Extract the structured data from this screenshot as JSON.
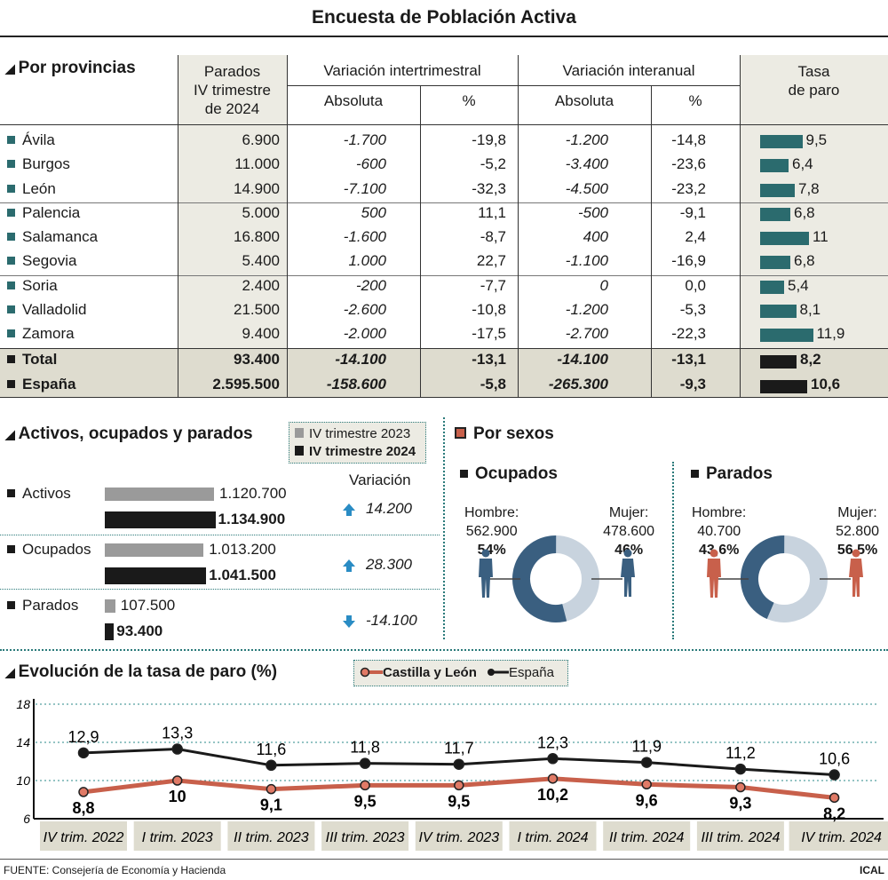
{
  "title": "Encuesta de Población Activa",
  "provinces": {
    "title": "Por provincias",
    "headers": {
      "parados": [
        "Parados",
        "IV trimestre",
        "de 2024"
      ],
      "intertrim": "Variación intertrimestral",
      "interanual": "Variación interanual",
      "absoluta": "Absoluta",
      "pct": "%",
      "tasa": [
        "Tasa",
        "de paro"
      ]
    },
    "rows": [
      {
        "name": "Ávila",
        "parados": "6.900",
        "it_abs": "-1.700",
        "it_pct": "-19,8",
        "ia_abs": "-1.200",
        "ia_pct": "-14,8",
        "tasa": "9,5",
        "tasa_value": 9.5
      },
      {
        "name": "Burgos",
        "parados": "11.000",
        "it_abs": "-600",
        "it_pct": "-5,2",
        "ia_abs": "-3.400",
        "ia_pct": "-23,6",
        "tasa": "6,4",
        "tasa_value": 6.4
      },
      {
        "name": "León",
        "parados": "14.900",
        "it_abs": "-7.100",
        "it_pct": "-32,3",
        "ia_abs": "-4.500",
        "ia_pct": "-23,2",
        "tasa": "7,8",
        "tasa_value": 7.8
      },
      {
        "name": "Palencia",
        "parados": "5.000",
        "it_abs": "500",
        "it_pct": "11,1",
        "ia_abs": "-500",
        "ia_pct": "-9,1",
        "tasa": "6,8",
        "tasa_value": 6.8
      },
      {
        "name": "Salamanca",
        "parados": "16.800",
        "it_abs": "-1.600",
        "it_pct": "-8,7",
        "ia_abs": "400",
        "ia_pct": "2,4",
        "tasa": "11",
        "tasa_value": 11
      },
      {
        "name": "Segovia",
        "parados": "5.400",
        "it_abs": "1.000",
        "it_pct": "22,7",
        "ia_abs": "-1.100",
        "ia_pct": "-16,9",
        "tasa": "6,8",
        "tasa_value": 6.8
      },
      {
        "name": "Soria",
        "parados": "2.400",
        "it_abs": "-200",
        "it_pct": "-7,7",
        "ia_abs": "0",
        "ia_pct": "0,0",
        "tasa": "5,4",
        "tasa_value": 5.4
      },
      {
        "name": "Valladolid",
        "parados": "21.500",
        "it_abs": "-2.600",
        "it_pct": "-10,8",
        "ia_abs": "-1.200",
        "ia_pct": "-5,3",
        "tasa": "8,1",
        "tasa_value": 8.1
      },
      {
        "name": "Zamora",
        "parados": "9.400",
        "it_abs": "-2.000",
        "it_pct": "-17,5",
        "ia_abs": "-2.700",
        "ia_pct": "-22,3",
        "tasa": "11,9",
        "tasa_value": 11.9
      }
    ],
    "totals": [
      {
        "name": "Total",
        "parados": "93.400",
        "it_abs": "-14.100",
        "it_pct": "-13,1",
        "ia_abs": "-14.100",
        "ia_pct": "-13,1",
        "tasa": "8,2",
        "tasa_value": 8.2
      },
      {
        "name": "España",
        "parados": "2.595.500",
        "it_abs": "-158.600",
        "it_pct": "-5,8",
        "ia_abs": "-265.300",
        "ia_pct": "-9,3",
        "tasa": "10,6",
        "tasa_value": 10.6
      }
    ]
  },
  "aop": {
    "title": "Activos, ocupados y parados",
    "legend": [
      "IV trimestre 2023",
      "IV trimestre 2024"
    ],
    "variacion_label": "Variación",
    "rows": [
      {
        "name": "Activos",
        "v2023": "1.120.700",
        "v2024": "1.134.900",
        "n2023": 1120700,
        "n2024": 1134900,
        "variacion": "14.200",
        "direction": "up"
      },
      {
        "name": "Ocupados",
        "v2023": "1.013.200",
        "v2024": "1.041.500",
        "n2023": 1013200,
        "n2024": 1041500,
        "variacion": "28.300",
        "direction": "up"
      },
      {
        "name": "Parados",
        "v2023": "107.500",
        "v2024": "93.400",
        "n2023": 107500,
        "n2024": 93400,
        "variacion": "-14.100",
        "direction": "down"
      }
    ]
  },
  "sexos": {
    "title": "Por sexos",
    "panels": [
      {
        "title": "Ocupados",
        "hombre_label": "Hombre:",
        "hombre_value": "562.900",
        "hombre_pct": "54%",
        "hombre_share": 54,
        "mujer_label": "Mujer:",
        "mujer_value": "478.600",
        "mujer_pct": "46%",
        "mujer_share": 46,
        "figure_color": "#3a5f80"
      },
      {
        "title": "Parados",
        "hombre_label": "Hombre:",
        "hombre_value": "40.700",
        "hombre_pct": "43,6%",
        "hombre_share": 43.6,
        "mujer_label": "Mujer:",
        "mujer_value": "52.800",
        "mujer_pct": "56,5%",
        "mujer_share": 56.5,
        "figure_color": "#c8604b"
      }
    ]
  },
  "chart_data": {
    "type": "line",
    "title": "Evolución de la tasa de paro (%)",
    "categories": [
      "IV trim. 2022",
      "I trim. 2023",
      "II trim. 2023",
      "III trim. 2023",
      "IV trim. 2023",
      "I trim. 2024",
      "II trim. 2024",
      "III trim. 2024",
      "IV trim. 2024"
    ],
    "series": [
      {
        "name": "Castilla y León",
        "color": "#c8604b",
        "values": [
          8.8,
          10,
          9.1,
          9.5,
          9.5,
          10.2,
          9.6,
          9.3,
          8.2
        ],
        "labels": [
          "8,8",
          "10",
          "9,1",
          "9,5",
          "9,5",
          "10,2",
          "9,6",
          "9,3",
          "8,2"
        ]
      },
      {
        "name": "España",
        "color": "#1a1a1a",
        "values": [
          12.9,
          13.3,
          11.6,
          11.8,
          11.7,
          12.3,
          11.9,
          11.2,
          10.6
        ],
        "labels": [
          "12,9",
          "13,3",
          "11,6",
          "11,8",
          "11,7",
          "12,3",
          "11,9",
          "11,2",
          "10,6"
        ]
      }
    ],
    "yticks": [
      "18",
      "14",
      "10",
      "6"
    ],
    "ylim": [
      6,
      18
    ],
    "grid": true,
    "legend": "top-center"
  },
  "footer": {
    "source": "FUENTE: Consejería de Economía y Hacienda",
    "credit": "ICAL"
  },
  "colors": {
    "teal": "#2b6b6e",
    "header_bg": "#ecebe3",
    "total_bg": "#dedccf",
    "donut_dark": "#3a5f80",
    "donut_light": "#c8d3de",
    "arrow": "#2a8cc4"
  }
}
